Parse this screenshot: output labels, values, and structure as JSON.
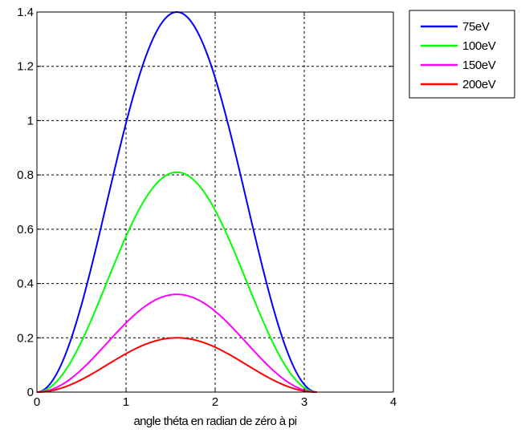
{
  "chart_data": {
    "type": "line",
    "title": "",
    "xlabel": "angle théta en radian de zéro à pi",
    "ylabel": "",
    "xlim": [
      0,
      4
    ],
    "ylim": [
      0,
      1.4
    ],
    "xticks": [
      0,
      1,
      2,
      3,
      4
    ],
    "yticks": [
      0,
      0.2,
      0.4,
      0.6,
      0.8,
      1,
      1.2,
      1.4
    ],
    "xtick_labels": [
      "0",
      "1",
      "2",
      "3",
      "4"
    ],
    "ytick_labels": [
      "0",
      "0.2",
      "0.4",
      "0.6",
      "0.8",
      "1",
      "1.2",
      "1.4"
    ],
    "grid": true,
    "legend_position": "outside-top-right",
    "x": [
      0,
      0.157,
      0.314,
      0.471,
      0.628,
      0.785,
      0.942,
      1.1,
      1.257,
      1.414,
      1.571,
      1.728,
      1.885,
      2.042,
      2.199,
      2.356,
      2.513,
      2.67,
      2.827,
      2.985,
      3.142
    ],
    "series": [
      {
        "name": "75eV",
        "color": "#0000ff",
        "values": [
          0,
          0.034,
          0.134,
          0.285,
          0.484,
          0.7,
          0.916,
          1.108,
          1.265,
          1.364,
          1.4,
          1.364,
          1.265,
          1.108,
          0.916,
          0.7,
          0.484,
          0.285,
          0.134,
          0.034,
          0
        ]
      },
      {
        "name": "100eV",
        "color": "#00ff00",
        "values": [
          0,
          0.02,
          0.078,
          0.166,
          0.281,
          0.405,
          0.53,
          0.641,
          0.733,
          0.79,
          0.81,
          0.79,
          0.733,
          0.641,
          0.53,
          0.405,
          0.281,
          0.166,
          0.078,
          0.02,
          0
        ]
      },
      {
        "name": "150eV",
        "color": "#ff00ff",
        "values": [
          0,
          0.009,
          0.034,
          0.073,
          0.124,
          0.18,
          0.236,
          0.285,
          0.325,
          0.351,
          0.36,
          0.351,
          0.325,
          0.285,
          0.236,
          0.18,
          0.124,
          0.073,
          0.034,
          0.009,
          0
        ]
      },
      {
        "name": "200eV",
        "color": "#ff0000",
        "values": [
          0,
          0.005,
          0.019,
          0.041,
          0.069,
          0.1,
          0.131,
          0.158,
          0.181,
          0.195,
          0.2,
          0.195,
          0.181,
          0.158,
          0.131,
          0.1,
          0.069,
          0.041,
          0.019,
          0.005,
          0
        ]
      }
    ]
  }
}
